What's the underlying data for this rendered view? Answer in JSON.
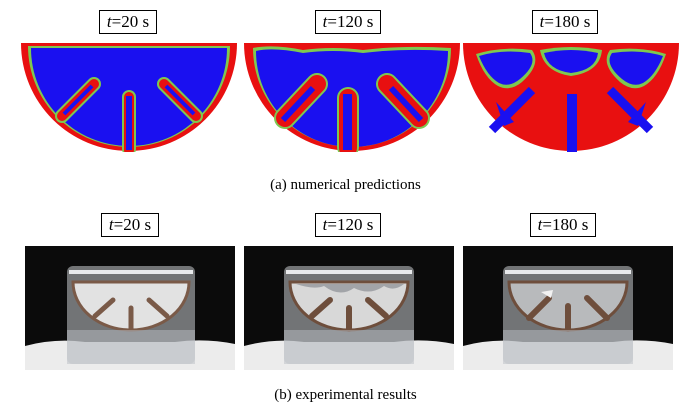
{
  "numerical": {
    "labels": [
      {
        "var": "t",
        "rest": "=20 s"
      },
      {
        "var": "t",
        "rest": "=120 s"
      },
      {
        "var": "t",
        "rest": "=180 s"
      }
    ],
    "caption": "(a) numerical predictions",
    "colors": {
      "fluid": "#1a10f0",
      "solid": "#e81010",
      "interface": "#7ec850"
    }
  },
  "experimental": {
    "labels": [
      {
        "var": "t",
        "rest": "=20 s"
      },
      {
        "var": "t",
        "rest": "=120 s"
      },
      {
        "var": "t",
        "rest": "=180 s"
      }
    ],
    "caption": "(b) experimental results"
  }
}
